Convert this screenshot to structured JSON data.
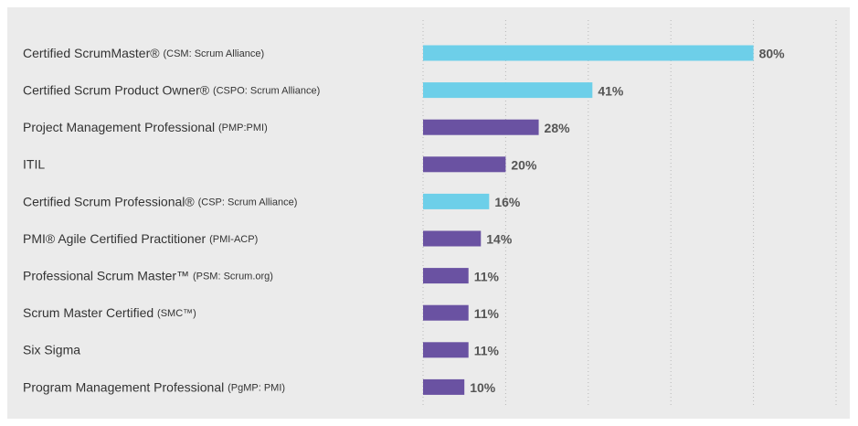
{
  "chart_data": {
    "type": "hbar",
    "categories": [
      "Certified ScrumMaster® (CSM: Scrum Alliance)",
      "Certified Scrum Product Owner® (CSPO: Scrum Alliance)",
      "Project Management Professional (PMP:PMI)",
      "ITIL",
      "Certified Scrum Professional® (CSP: Scrum Alliance)",
      "PMI® Agile Certified Practitioner (PMI-ACP)",
      "Professional Scrum Master™ (PSM: Scrum.org)",
      "Scrum Master Certified (SMC™)",
      "Six Sigma",
      "Program Management Professional (PgMP: PMI)"
    ],
    "values": [
      80,
      41,
      28,
      20,
      16,
      14,
      11,
      11,
      11,
      10
    ],
    "value_labels": [
      "80%",
      "41%",
      "28%",
      "20%",
      "16%",
      "14%",
      "11%",
      "11%",
      "11%",
      "10%"
    ],
    "colors": [
      "#6dcfe9",
      "#6dcfe9",
      "#6a52a2",
      "#6a52a2",
      "#6dcfe9",
      "#6a52a2",
      "#6a52a2",
      "#6a52a2",
      "#6a52a2",
      "#6a52a2"
    ],
    "xlim": [
      0,
      100
    ],
    "xticks": [
      0,
      20,
      40,
      60,
      80,
      100
    ],
    "grid": true
  }
}
